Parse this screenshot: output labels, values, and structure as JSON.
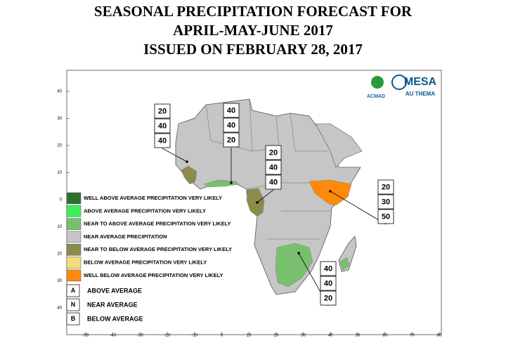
{
  "title": [
    "SEASONAL PRECIPITATION FORECAST FOR",
    "APRIL-MAY-JUNE 2017",
    "ISSUED ON FEBRUARY 28, 2017"
  ],
  "map": {
    "y_ticks": [
      40,
      30,
      20,
      10,
      0,
      10,
      20,
      30,
      40
    ],
    "x_ticks": [
      -50,
      -40,
      -30,
      -20,
      -10,
      0,
      10,
      20,
      30,
      40,
      50,
      60,
      70,
      80
    ]
  },
  "legend": [
    {
      "label": "WELL ABOVE AVERAGE PRECIPITATION VERY LIKELY",
      "color": "#2e7031"
    },
    {
      "label": "ABOVE AVERAGE PRECIPITATION VERY LIKELY",
      "color": "#3af05a"
    },
    {
      "label": "NEAR TO ABOVE AVERAGE PRECIPITATION VERY LIKELY",
      "color": "#79c06e"
    },
    {
      "label": "NEAR AVERAGE PRECIPITATION",
      "color": "#c6c6c6"
    },
    {
      "label": "NEAR  TO BELOW AVERAGE PRECIPITATION VERY LIKELY",
      "color": "#8c8a4c"
    },
    {
      "label": "BELOW  AVERAGE PRECIPITATION VERY LIKELY",
      "color": "#f6dc78"
    },
    {
      "label": "WELL BELOW AVERAGE PRECIPITATION VERY LIKELY",
      "color": "#ff8a0a"
    }
  ],
  "key": [
    {
      "letter": "A",
      "label": "ABOVE AVERAGE"
    },
    {
      "letter": "N",
      "label": "NEAR AVERAGE"
    },
    {
      "letter": "B",
      "label": "BELOW AVERAGE"
    }
  ],
  "forecast_boxes": [
    [
      20,
      40,
      40
    ],
    [
      40,
      40,
      20
    ],
    [
      20,
      40,
      40
    ],
    [
      20,
      30,
      50
    ],
    [
      40,
      40,
      20
    ]
  ],
  "logos": {
    "acmad": "ACMAD",
    "mesa": "MESA",
    "au_thema": "AU THEMA"
  }
}
